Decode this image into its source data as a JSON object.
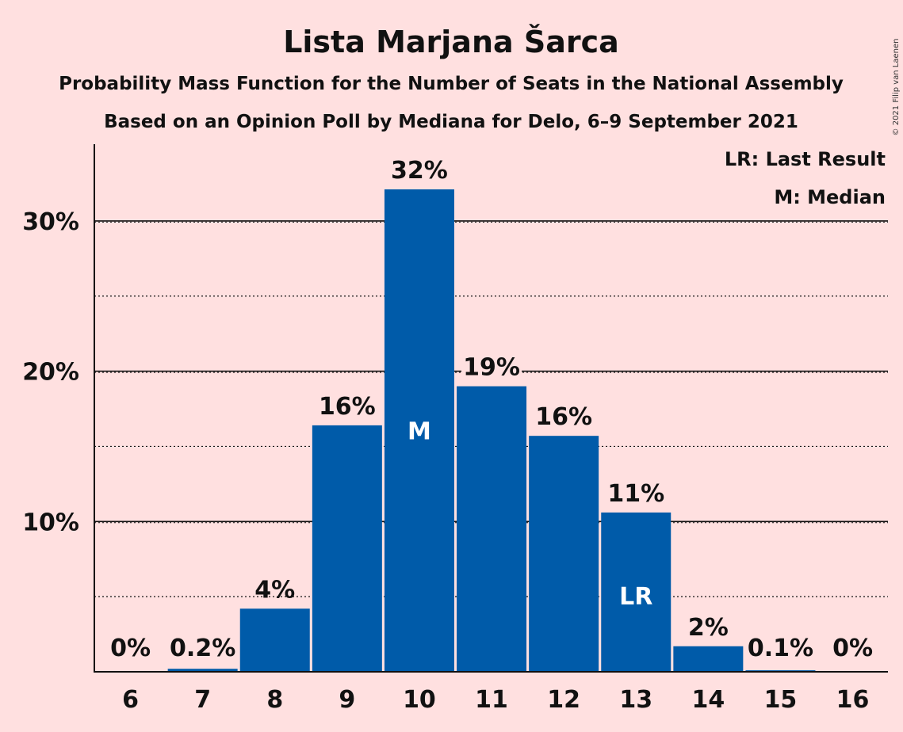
{
  "chart_data": {
    "type": "bar",
    "title": "Lista Marjana Šarca",
    "subtitle_1": "Probability Mass Function for the Number of Seats in the National Assembly",
    "subtitle_2": "Based on an Opinion Poll by Mediana for Delo, 6–9 September 2021",
    "copyright": "© 2021 Filip van Laenen",
    "categories": [
      "6",
      "7",
      "8",
      "9",
      "10",
      "11",
      "12",
      "13",
      "14",
      "15",
      "16"
    ],
    "values": [
      0,
      0.2,
      4.2,
      16.4,
      32.1,
      19.0,
      15.7,
      10.6,
      1.7,
      0.1,
      0
    ],
    "value_labels": [
      "0%",
      "0.2%",
      "4%",
      "16%",
      "32%",
      "19%",
      "16%",
      "11%",
      "2%",
      "0.1%",
      "0%"
    ],
    "bar_markers": {
      "10": "M",
      "13": "LR"
    },
    "ylim": [
      0,
      35
    ],
    "yticks": [
      10,
      20,
      30
    ],
    "ytick_labels": [
      "10%",
      "20%",
      "30%"
    ],
    "minor_gridlines": [
      5,
      15,
      25
    ],
    "legend": [
      "LR: Last Result",
      "M: Median"
    ],
    "legend_position": "top-right",
    "bar_color": "#005ba9",
    "grid": true
  }
}
